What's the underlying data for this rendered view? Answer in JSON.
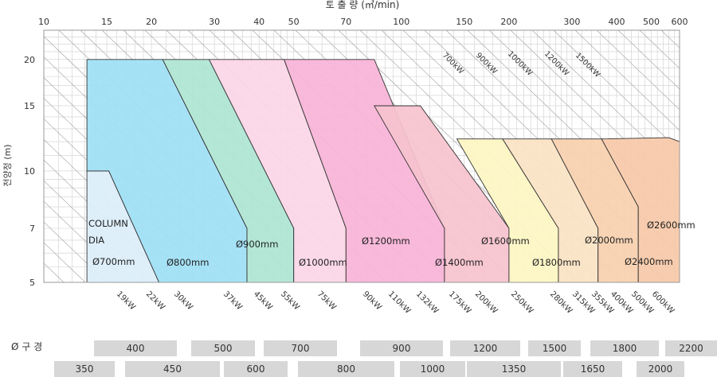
{
  "chart_data": {
    "type": "area",
    "title": "토 출 량 (㎥/min)",
    "ylabel": "전양정 (m)",
    "x_scale": "log",
    "y_scale": "log",
    "xlim": [
      10,
      600
    ],
    "ylim": [
      5,
      24
    ],
    "x_ticks": [
      10,
      15,
      20,
      30,
      40,
      50,
      70,
      100,
      150,
      200,
      300,
      400,
      500,
      600
    ],
    "y_ticks": [
      5,
      7,
      10,
      15,
      20
    ],
    "grid": true,
    "regions": [
      {
        "name": "Ø700mm",
        "color": "#dceefa",
        "points": [
          [
            13.2,
            10
          ],
          [
            15.2,
            10
          ],
          [
            21,
            5
          ],
          [
            13.2,
            5
          ]
        ]
      },
      {
        "name": "Ø800mm",
        "color": "#9fe0f5",
        "points": [
          [
            13.2,
            20
          ],
          [
            21.5,
            20
          ],
          [
            37,
            7
          ],
          [
            37,
            5
          ],
          [
            21,
            5
          ],
          [
            15.2,
            10
          ],
          [
            13.2,
            10
          ]
        ]
      },
      {
        "name": "Ø900mm",
        "color": "#aee5d3",
        "points": [
          [
            21.5,
            20
          ],
          [
            29,
            20
          ],
          [
            50,
            7
          ],
          [
            50,
            5
          ],
          [
            37,
            5
          ],
          [
            37,
            7
          ]
        ]
      },
      {
        "name": "Ø1000mm",
        "color": "#fbd6e6",
        "points": [
          [
            29,
            20
          ],
          [
            47,
            20
          ],
          [
            70,
            7
          ],
          [
            70,
            5
          ],
          [
            50,
            5
          ],
          [
            50,
            7
          ]
        ]
      },
      {
        "name": "Ø1200mm",
        "color": "#f7b4d7",
        "points": [
          [
            47,
            20
          ],
          [
            84,
            20
          ],
          [
            132,
            7
          ],
          [
            132,
            5
          ],
          [
            70,
            5
          ],
          [
            70,
            7
          ]
        ]
      },
      {
        "name": "Ø1400mm",
        "color": "#f6c3cf",
        "points": [
          [
            84,
            15
          ],
          [
            113,
            15
          ],
          [
            200,
            7
          ],
          [
            200,
            5
          ],
          [
            132,
            5
          ],
          [
            132,
            7
          ]
        ]
      },
      {
        "name": "Ø1600mm",
        "color": "#fdf6c4",
        "points": [
          [
            143,
            12.2
          ],
          [
            192,
            12.2
          ],
          [
            275,
            7
          ],
          [
            275,
            5
          ],
          [
            200,
            5
          ],
          [
            200,
            7
          ]
        ]
      },
      {
        "name": "Ø1800mm",
        "color": "#fbe3c4",
        "points": [
          [
            192,
            12.2
          ],
          [
            263,
            12.2
          ],
          [
            355,
            7
          ],
          [
            355,
            5
          ],
          [
            275,
            5
          ],
          [
            275,
            7
          ]
        ]
      },
      {
        "name": "Ø2000mm",
        "color": "#f8d1ae",
        "points": [
          [
            263,
            12.2
          ],
          [
            363,
            12.2
          ],
          [
            460,
            8
          ],
          [
            460,
            5
          ],
          [
            355,
            5
          ],
          [
            355,
            7
          ]
        ]
      },
      {
        "name": "Ø2400mm",
        "color": "#f7c9a9",
        "points": [
          [
            363,
            12.2
          ],
          [
            560,
            12.3
          ],
          [
            600,
            12
          ],
          [
            600,
            5
          ],
          [
            460,
            5
          ],
          [
            460,
            8
          ]
        ]
      }
    ],
    "region_labels": [
      "COLUMN",
      "DIA",
      "Ø700mm",
      "Ø800mm",
      "Ø900mm",
      "Ø1000mm",
      "Ø1200mm",
      "Ø1400mm",
      "Ø1600mm",
      "Ø1800mm",
      "Ø2000mm",
      "Ø2400mm",
      "Ø2600mm"
    ],
    "power_lines_bottom": [
      "19kW",
      "22kW",
      "30kW",
      "37kW",
      "45kW",
      "55kW",
      "75kW",
      "90kW",
      "110kW",
      "132kW",
      "175kW",
      "200kW",
      "250kW",
      "280kW",
      "315kW",
      "355kW",
      "400kW",
      "500kW",
      "600kW"
    ],
    "power_lines_diagonal": [
      "700kW",
      "900kW",
      "1000kW",
      "1200kW",
      "1500kW"
    ]
  },
  "size_table": {
    "label": "Ø 구 경",
    "top_row": [
      "400",
      "500",
      "700",
      "900",
      "1200",
      "1500",
      "1800",
      "2200"
    ],
    "bottom_row": [
      "350",
      "450",
      "600",
      "800",
      "1000",
      "1350",
      "1650",
      "2000"
    ]
  }
}
